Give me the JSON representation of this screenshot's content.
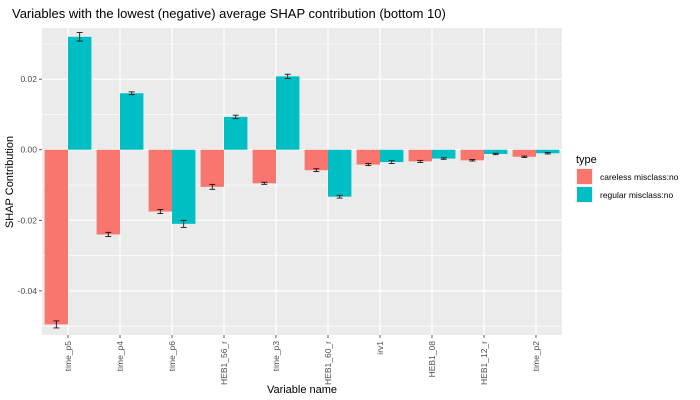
{
  "chart_data": {
    "type": "bar",
    "title": "Variables with the lowest (negative) average SHAP contribution (bottom 10)",
    "xlabel": "Variable name",
    "ylabel": "SHAP Contribution",
    "categories": [
      "time_p5",
      "time_p4",
      "time_p6",
      "HEB1_56_r",
      "time_p3",
      "HEB1_60_r",
      "irv1",
      "HEB1_08",
      "HEB1_12_r",
      "time_p2"
    ],
    "series": [
      {
        "name": "careless misclass:no",
        "color": "#F8766D",
        "values": [
          -0.0495,
          -0.024,
          -0.0175,
          -0.0105,
          -0.0095,
          -0.0058,
          -0.0042,
          -0.0033,
          -0.003,
          -0.002
        ],
        "errors": [
          0.001,
          0.0006,
          0.0006,
          0.0007,
          0.0003,
          0.0004,
          0.0003,
          0.0003,
          0.0002,
          0.0002
        ]
      },
      {
        "name": "regular misclass:no",
        "color": "#00BFC4",
        "values": [
          0.032,
          0.016,
          -0.021,
          0.0093,
          0.0208,
          -0.0133,
          -0.0035,
          -0.0025,
          -0.0012,
          -0.001
        ],
        "errors": [
          0.0012,
          0.0004,
          0.001,
          0.0005,
          0.0006,
          0.0004,
          0.0004,
          0.0002,
          0.0002,
          0.0002
        ]
      }
    ],
    "ylim": [
      -0.0525,
      0.0345
    ],
    "yticks": [
      -0.04,
      -0.02,
      0.0,
      0.02
    ],
    "ytick_labels": [
      "-0.04",
      "-0.02",
      "0.00",
      "0.02"
    ],
    "grid": true,
    "legend": {
      "title": "type",
      "placement": "right"
    }
  }
}
